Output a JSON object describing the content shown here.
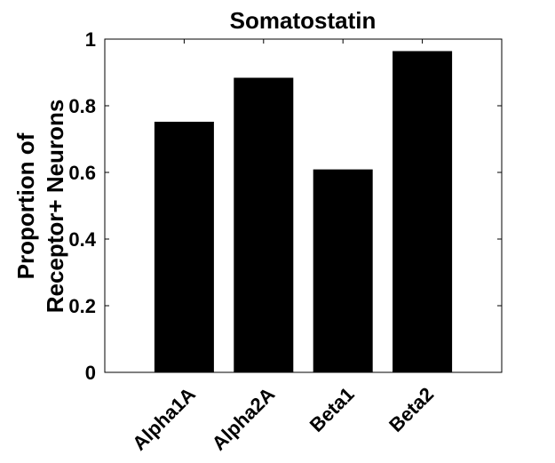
{
  "chart_data": {
    "type": "bar",
    "title": "Somatostatin",
    "categories": [
      "Alpha1A",
      "Alpha2A",
      "Beta1",
      "Beta2"
    ],
    "values": [
      0.752,
      0.884,
      0.609,
      0.964
    ],
    "ylabel_lines": [
      "Proportion of",
      "Receptor+ Neurons"
    ],
    "xlabel": "",
    "ylim": [
      0,
      1
    ],
    "yticks": [
      "0",
      "0.2",
      "0.4",
      "0.6",
      "0.8",
      "1"
    ],
    "bar_color": "#000000",
    "grid": false
  }
}
